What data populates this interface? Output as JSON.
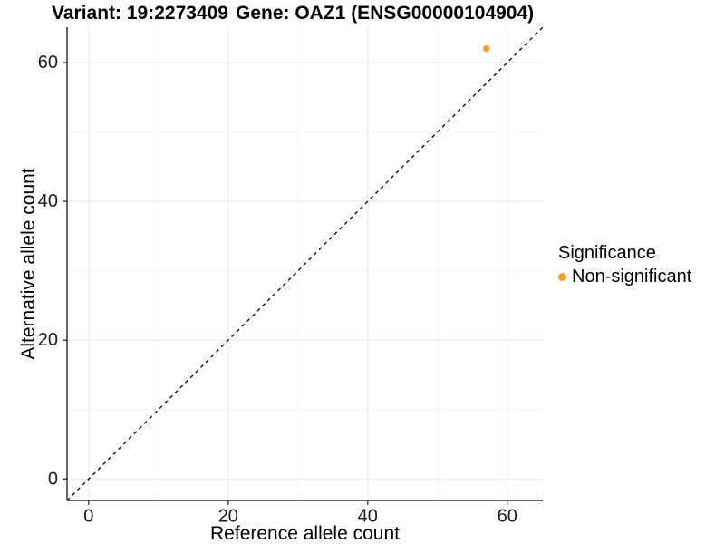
{
  "chart_data": {
    "type": "scatter",
    "title_left": "Variant: 19:2273409",
    "title_right": "Gene: OAZ1 (ENSG00000104904)",
    "xlabel": "Reference allele count",
    "ylabel": "Alternative allele count",
    "xlim": [
      -3.1,
      65.1
    ],
    "ylim": [
      -3.1,
      65.1
    ],
    "x_ticks": [
      0,
      20,
      40,
      60
    ],
    "y_ticks": [
      0,
      20,
      40,
      60
    ],
    "x_minor_ticks": [
      10,
      30,
      50
    ],
    "y_minor_ticks": [
      10,
      30,
      50
    ],
    "grid": "major and minor gridlines on white background, left and bottom axis lines only",
    "identity_line": {
      "style": "dashed",
      "slope": 1,
      "intercept": 0
    },
    "points": [
      {
        "x": 57,
        "y": 62,
        "series": "Non-significant"
      }
    ],
    "legend": {
      "title": "Significance",
      "position": "right",
      "items": [
        {
          "label": "Non-significant",
          "color": "#F89B28"
        }
      ]
    },
    "colors": {
      "point": "#F89B28",
      "grid_major": "#E8E8E8",
      "grid_minor": "#F4F4F4",
      "axis": "#333333",
      "tick_label": "#1A1A1A",
      "identity_line": "#000000"
    }
  }
}
